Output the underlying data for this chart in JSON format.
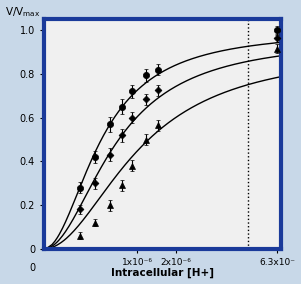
{
  "title_x": "Intracellular [H+]",
  "ylim": [
    0,
    1.05
  ],
  "xlim_data": [
    0,
    6.5e-06
  ],
  "xtick_vals": [
    1e-06,
    2e-06,
    6.3e-06
  ],
  "xtick_labels": [
    "1x10⁻⁶",
    "2x10⁻⁶",
    "6.3x10⁻"
  ],
  "yticks": [
    0,
    0.2,
    0.4,
    0.6,
    0.8,
    1.0
  ],
  "ytick_labels": [
    "0",
    "0.2",
    "0.4",
    "0.6",
    "0.8",
    "1.0"
  ],
  "vline_x": 4.8e-06,
  "fig_bg": "#c8d8e8",
  "plot_bg": "#f0f0f0",
  "border_color": "#1a3a9a",
  "border_lw": 3.0,
  "series": [
    {
      "marker": "o",
      "ms": 4.5,
      "km": 3.8e-07,
      "vmax": 1.0,
      "x_data": [
        1.5e-07,
        3e-07,
        5e-07,
        7e-07,
        9e-07,
        1.2e-06,
        1.5e-06,
        6.3e-06
      ],
      "y_data": [
        0.28,
        0.42,
        0.57,
        0.65,
        0.72,
        0.795,
        0.82,
        1.0
      ],
      "yerr": [
        0.025,
        0.028,
        0.035,
        0.035,
        0.03,
        0.03,
        0.025,
        0.02
      ]
    },
    {
      "marker": "D",
      "ms": 3.5,
      "km": 6e-07,
      "vmax": 0.965,
      "x_data": [
        1.5e-07,
        3e-07,
        5e-07,
        7e-07,
        9e-07,
        1.2e-06,
        1.5e-06,
        6.3e-06
      ],
      "y_data": [
        0.18,
        0.3,
        0.43,
        0.52,
        0.6,
        0.685,
        0.725,
        0.965
      ],
      "yerr": [
        0.02,
        0.025,
        0.03,
        0.03,
        0.025,
        0.025,
        0.025,
        0.02
      ]
    },
    {
      "marker": "^",
      "ms": 5.0,
      "km": 1.05e-06,
      "vmax": 0.915,
      "x_data": [
        1.5e-07,
        3e-07,
        5e-07,
        7e-07,
        9e-07,
        1.2e-06,
        1.5e-06,
        6.3e-06
      ],
      "y_data": [
        0.06,
        0.12,
        0.2,
        0.29,
        0.38,
        0.5,
        0.565,
        0.915
      ],
      "yerr": [
        0.015,
        0.018,
        0.025,
        0.025,
        0.025,
        0.025,
        0.025,
        0.02
      ]
    }
  ]
}
